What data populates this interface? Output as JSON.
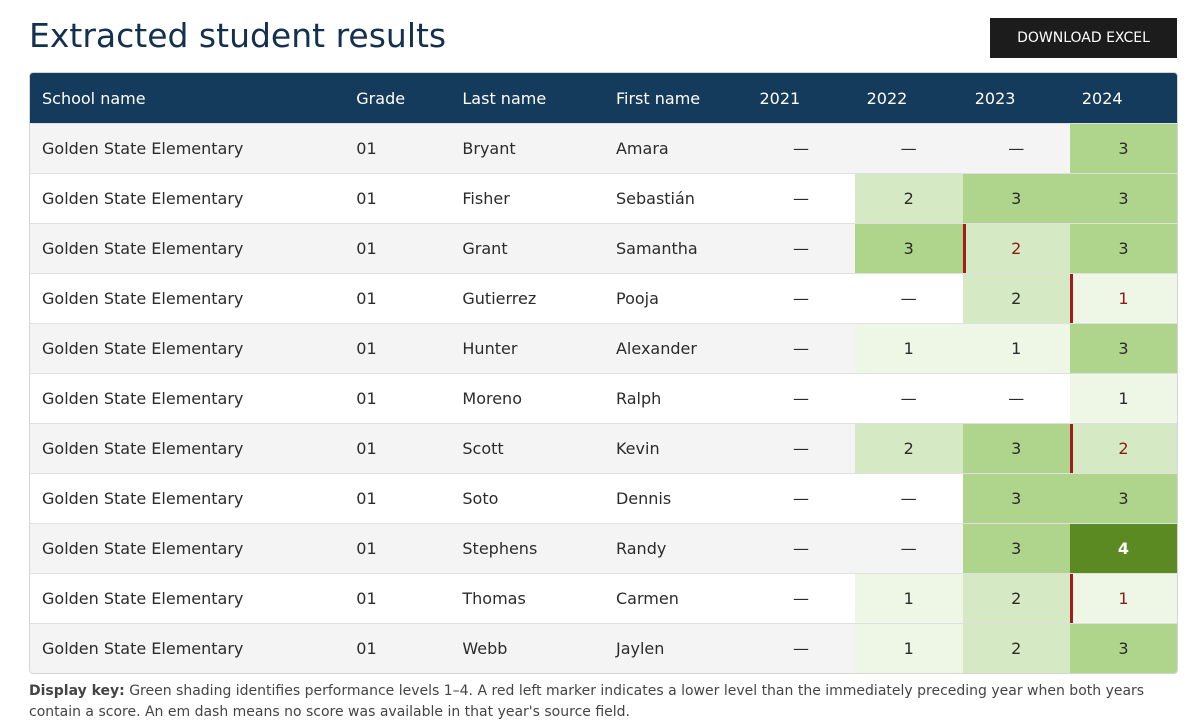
{
  "header": {
    "title": "Extracted student results",
    "button": "DOWNLOAD EXCEL"
  },
  "table": {
    "columns": [
      "School name",
      "Grade",
      "Last name",
      "First name",
      "2021",
      "2022",
      "2023",
      "2024"
    ],
    "rows": [
      [
        "Golden State Elementary",
        "01",
        "Bryant",
        "Amara",
        "—",
        "—",
        "—",
        3
      ],
      [
        "Golden State Elementary",
        "01",
        "Fisher",
        "Sebastián",
        "—",
        2,
        3,
        3
      ],
      [
        "Golden State Elementary",
        "01",
        "Grant",
        "Samantha",
        "—",
        3,
        2,
        3
      ],
      [
        "Golden State Elementary",
        "01",
        "Gutierrez",
        "Pooja",
        "—",
        "—",
        2,
        1
      ],
      [
        "Golden State Elementary",
        "01",
        "Hunter",
        "Alexander",
        "—",
        1,
        1,
        3
      ],
      [
        "Golden State Elementary",
        "01",
        "Moreno",
        "Ralph",
        "—",
        "—",
        "—",
        1
      ],
      [
        "Golden State Elementary",
        "01",
        "Scott",
        "Kevin",
        "—",
        2,
        3,
        2
      ],
      [
        "Golden State Elementary",
        "01",
        "Soto",
        "Dennis",
        "—",
        "—",
        3,
        3
      ],
      [
        "Golden State Elementary",
        "01",
        "Stephens",
        "Randy",
        "—",
        "—",
        3,
        4
      ],
      [
        "Golden State Elementary",
        "01",
        "Thomas",
        "Carmen",
        "—",
        1,
        2,
        1
      ],
      [
        "Golden State Elementary",
        "01",
        "Webb",
        "Jaylen",
        "—",
        1,
        2,
        3
      ]
    ]
  },
  "key": {
    "label": "Display key:",
    "text": "Green shading identifies performance levels 1–4. A red left marker indicates a lower level than the immediately preceding year when both years contain a score. An em dash means no score was available in that year's source field."
  }
}
